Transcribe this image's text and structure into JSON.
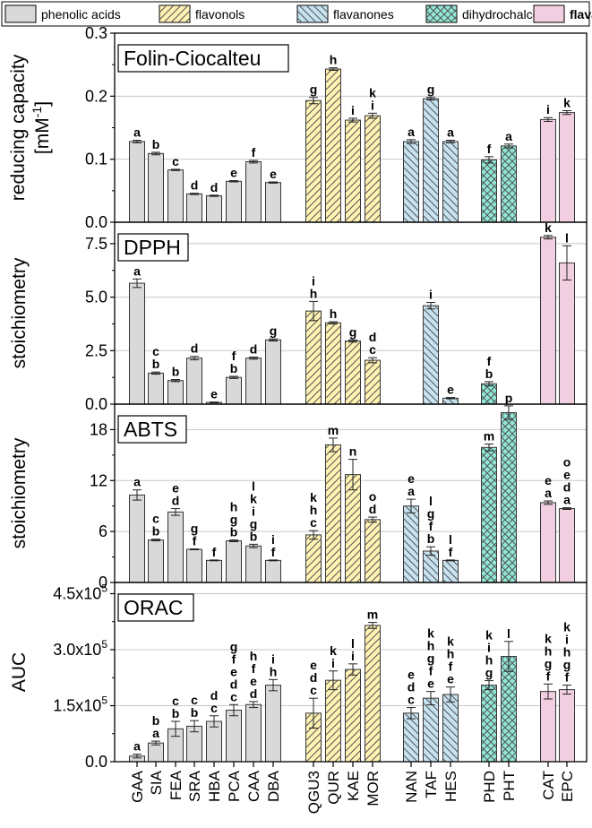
{
  "chart_data": {
    "type": "bar",
    "categories": [
      "GAA",
      "SIA",
      "FEA",
      "SRA",
      "HBA",
      "PCA",
      "CAA",
      "DBA",
      "QGU3",
      "QUR",
      "KAE",
      "MOR",
      "NAN",
      "TAF",
      "HES",
      "PHD",
      "PHT",
      "CAT",
      "EPC"
    ],
    "legend": [
      {
        "name": "phenolic acids",
        "color": "#d9d9d9",
        "pattern": "solid",
        "members": [
          "GAA",
          "SIA",
          "FEA",
          "SRA",
          "HBA",
          "PCA",
          "CAA",
          "DBA"
        ]
      },
      {
        "name": "flavonols",
        "color": "#fff2b3",
        "pattern": "diag-up",
        "members": [
          "QGU3",
          "QUR",
          "KAE",
          "MOR"
        ]
      },
      {
        "name": "flavanones",
        "color": "#c6e2f0",
        "pattern": "diag-down",
        "members": [
          "NAN",
          "TAF",
          "HES"
        ]
      },
      {
        "name": "dihydrochalcones",
        "color": "#8fe8d6",
        "pattern": "cross",
        "members": [
          "PHD",
          "PHT"
        ]
      },
      {
        "name": "flavanols",
        "color": "#f2cfe0",
        "pattern": "solid",
        "members": [
          "CAT",
          "EPC"
        ]
      }
    ],
    "panels": [
      {
        "title": "Folin-Ciocalteu",
        "ylabel_line1": "reducing capacity",
        "ylabel_line2": "[mM-1]",
        "ylim": [
          0,
          0.3
        ],
        "ticks": [
          "0.0",
          "0.1",
          "0.2",
          "0.3"
        ],
        "tick_values": [
          0,
          0.1,
          0.2,
          0.3
        ],
        "values": [
          0.128,
          0.109,
          0.083,
          0.045,
          0.042,
          0.065,
          0.096,
          0.063,
          0.193,
          0.243,
          0.162,
          0.169,
          0.128,
          0.196,
          0.128,
          0.099,
          0.121,
          0.163,
          0.174
        ],
        "errors": [
          0.002,
          0.002,
          0.001,
          0.001,
          0.001,
          0.001,
          0.002,
          0.001,
          0.005,
          0.002,
          0.003,
          0.004,
          0.003,
          0.002,
          0.002,
          0.005,
          0.003,
          0.003,
          0.003
        ],
        "letters": [
          [
            "a"
          ],
          [
            "b"
          ],
          [
            "c"
          ],
          [
            "d"
          ],
          [
            "d"
          ],
          [
            "e"
          ],
          [
            "f"
          ],
          [
            "e"
          ],
          [
            "g"
          ],
          [
            "h"
          ],
          [
            "i"
          ],
          [
            "k",
            "i"
          ],
          [
            "a"
          ],
          [
            "g"
          ],
          [
            "a"
          ],
          [
            "f"
          ],
          [
            "a"
          ],
          [
            "i"
          ],
          [
            "k"
          ]
        ]
      },
      {
        "title": "DPPH",
        "ylabel_line1": "stoichiometry",
        "ylim": [
          0,
          8.5
        ],
        "ticks": [
          "0.0",
          "2.5",
          "5.0",
          "7.5"
        ],
        "tick_values": [
          0,
          2.5,
          5.0,
          7.5
        ],
        "values": [
          5.65,
          1.45,
          1.1,
          2.15,
          0.08,
          1.25,
          2.15,
          3.0,
          4.35,
          3.8,
          2.95,
          2.05,
          0,
          4.6,
          0.28,
          0.95,
          0,
          7.8,
          6.6
        ],
        "errors": [
          0.2,
          0.05,
          0.05,
          0.08,
          0.02,
          0.05,
          0.05,
          0.05,
          0.45,
          0.05,
          0.05,
          0.12,
          0,
          0.15,
          0.03,
          0.1,
          0,
          0.08,
          0.8
        ],
        "letters": [
          [
            "a"
          ],
          [
            "c",
            "b"
          ],
          [
            "b"
          ],
          [
            "d"
          ],
          [
            "e"
          ],
          [
            "f",
            "b"
          ],
          [
            "d"
          ],
          [
            "g"
          ],
          [
            "i",
            "h"
          ],
          [
            "h"
          ],
          [
            "g"
          ],
          [
            "d",
            "c"
          ],
          [],
          [
            "i"
          ],
          [
            "e"
          ],
          [
            "f",
            "b"
          ],
          [],
          [
            "k"
          ],
          [
            "l"
          ]
        ]
      },
      {
        "title": "ABTS",
        "ylabel_line1": "stoichiometry",
        "ylim": [
          0,
          21
        ],
        "ticks": [
          "0",
          "6",
          "12",
          "18"
        ],
        "tick_values": [
          0,
          6,
          12,
          18
        ],
        "values": [
          10.3,
          5.0,
          8.3,
          3.9,
          2.6,
          4.9,
          4.3,
          2.6,
          5.6,
          16.2,
          12.7,
          7.4,
          9.0,
          3.7,
          2.6,
          15.9,
          20.0,
          9.4,
          8.7
        ],
        "errors": [
          0.6,
          0.1,
          0.4,
          0.05,
          0.05,
          0.1,
          0.2,
          0.05,
          0.5,
          0.8,
          1.8,
          0.3,
          0.8,
          0.5,
          0.05,
          0.4,
          0.8,
          0.2,
          0.1
        ],
        "letters": [
          [
            "a"
          ],
          [
            "c",
            "b"
          ],
          [
            "e",
            "d"
          ],
          [
            "g",
            "f"
          ],
          [
            "f"
          ],
          [
            "h",
            "g",
            "b"
          ],
          [
            "l",
            "k",
            "i",
            "g",
            "b"
          ],
          [
            "i",
            "f"
          ],
          [
            "k",
            "h",
            "c"
          ],
          [
            "m"
          ],
          [
            "n"
          ],
          [
            "o",
            "d"
          ],
          [
            "e",
            "a"
          ],
          [
            "l",
            "g",
            "f",
            "b"
          ],
          [
            "l",
            "f"
          ],
          [
            "m"
          ],
          [
            "p"
          ],
          [
            "e",
            "a"
          ],
          [
            "o",
            "e",
            "d",
            "a"
          ]
        ]
      },
      {
        "title": "ORAC",
        "ylabel_line1": "AUC",
        "ylim": [
          0,
          480000
        ],
        "ticks": [
          "0.0",
          "1.5x10^5",
          "3.0x10^5",
          "4.5x10^5"
        ],
        "tick_values": [
          0,
          150000,
          300000,
          450000
        ],
        "values": [
          15000,
          50000,
          88000,
          95000,
          108000,
          138000,
          153000,
          205000,
          130000,
          218000,
          247000,
          365000,
          130000,
          170000,
          180000,
          205000,
          282000,
          188000,
          193000
        ],
        "errors": [
          5000,
          5000,
          20000,
          15000,
          15000,
          15000,
          8000,
          15000,
          40000,
          25000,
          15000,
          8000,
          15000,
          18000,
          20000,
          12000,
          40000,
          20000,
          12000
        ],
        "letters": [
          [
            "a"
          ],
          [
            "b",
            "a"
          ],
          [
            "c",
            "b"
          ],
          [
            "c",
            "b"
          ],
          [
            "d",
            "c"
          ],
          [
            "g",
            "f",
            "e",
            "d",
            "c"
          ],
          [
            "h",
            "f",
            "e",
            "d"
          ],
          [
            "i",
            "h"
          ],
          [
            "e",
            "d",
            "c"
          ],
          [
            "k",
            "i"
          ],
          [
            "l",
            "i"
          ],
          [
            "m"
          ],
          [
            "e",
            "d",
            "c"
          ],
          [
            "k",
            "h",
            "g",
            "f",
            "e"
          ],
          [
            "k",
            "h",
            "f",
            "e"
          ],
          [
            "k",
            "i",
            "h",
            "g"
          ],
          [
            "l"
          ],
          [
            "k",
            "h",
            "g",
            "f"
          ],
          [
            "k",
            "i",
            "h",
            "g",
            "f"
          ]
        ]
      }
    ]
  }
}
